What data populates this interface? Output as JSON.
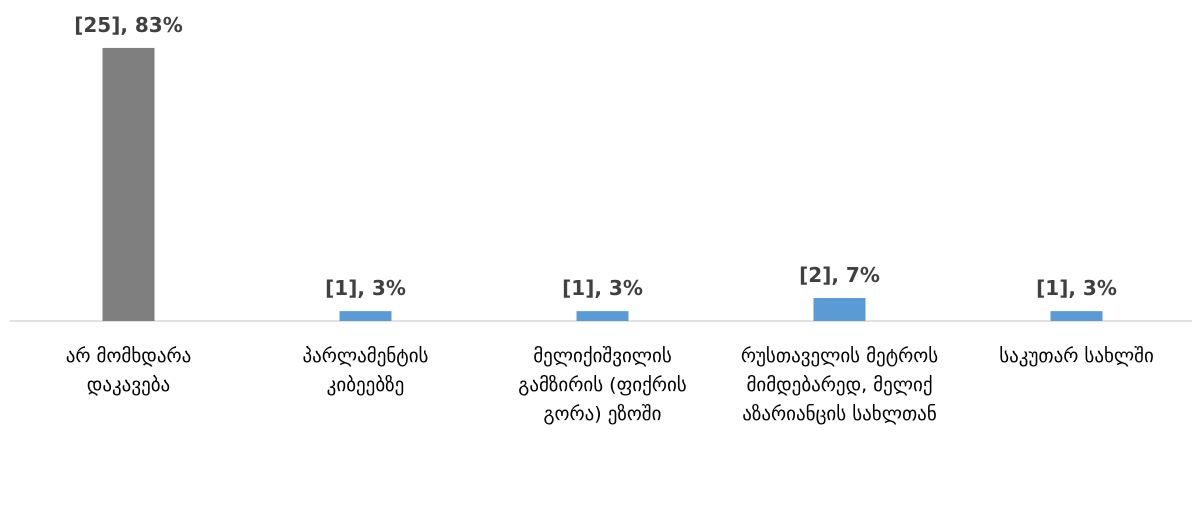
{
  "chart_data": {
    "type": "bar",
    "categories": [
      "არ მომხდარა დაკავება",
      "პარლამენტის კიბეებზე",
      "მელიქიშვილის გამზირის (ფიქრის გორა) ეზოში",
      "რუსთაველის მეტროს მიმდებარედ, მელიქ აზარიანცის სახლთან",
      "საკუთარ სახლში"
    ],
    "values": [
      83,
      3,
      3,
      7,
      3
    ],
    "value_labels": [
      "[25], 83%",
      "[1], 3%",
      "[1], 3%",
      "[2], 7%",
      "[1], 3%"
    ],
    "colors": [
      "#7f7f7f",
      "#5b9bd5",
      "#5b9bd5",
      "#5b9bd5",
      "#5b9bd5"
    ],
    "ylim": [
      0,
      100
    ]
  }
}
